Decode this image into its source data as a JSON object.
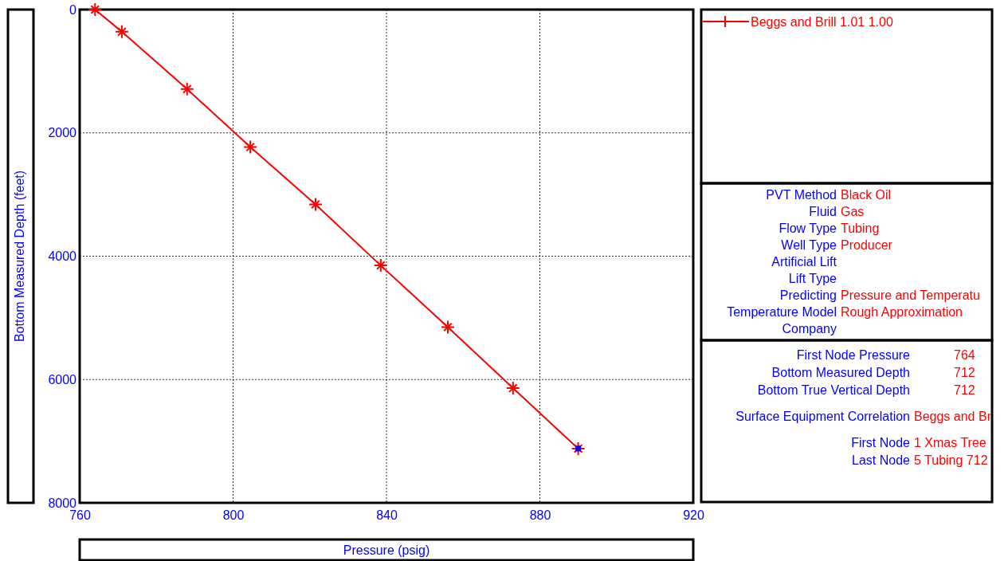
{
  "chart_data": [
    {
      "type": "line",
      "xlabel": "Pressure  (psig)",
      "ylabel": "Bottom Measured Depth  (feet)",
      "xlim": [
        760,
        920
      ],
      "xticks": [
        760,
        800,
        840,
        880,
        920
      ],
      "ylim": [
        8000,
        0
      ],
      "yticks": [
        0,
        2000,
        4000,
        6000,
        8000
      ],
      "grid": true,
      "line_style": "solid",
      "legend": "top right",
      "series": [
        {
          "name": "Beggs and Brill 1.01 1.00",
          "color": "#ff0000",
          "marker": "cross",
          "x": [
            764,
            771,
            788,
            804.5,
            821.5,
            838.5,
            856,
            873,
            890
          ],
          "values": [
            0,
            360,
            1290,
            2230,
            3160,
            4150,
            5150,
            6140,
            7120
          ]
        },
        {
          "type": "scatter",
          "color": "#0000ff",
          "marker": "square",
          "x": [
            890
          ],
          "values": [
            7120
          ]
        }
      ]
    },
    {
      "type": "other",
      "annotations": [
        "PVT Method",
        "Black Oil",
        "Fluid",
        "Gas",
        "Flow Type",
        "Tubing",
        "Well Type",
        "Producer",
        "Artificial Lift",
        null,
        "Lift Type",
        null,
        "Predicting",
        "Pressure and Temperatu",
        "Temperature Model",
        "Rough Approximation",
        "Company",
        null
      ]
    },
    {
      "type": "other",
      "annotations": [
        "First Node Pressure",
        "764",
        "Bottom Measured Depth",
        "712",
        "Bottom True Vertical Depth",
        "712",
        "Surface Equipment Correlation",
        "Beggs and Br",
        "First Node",
        "1 Xmas Tree",
        "Last Node",
        "5 Tubing 712"
      ]
    }
  ]
}
